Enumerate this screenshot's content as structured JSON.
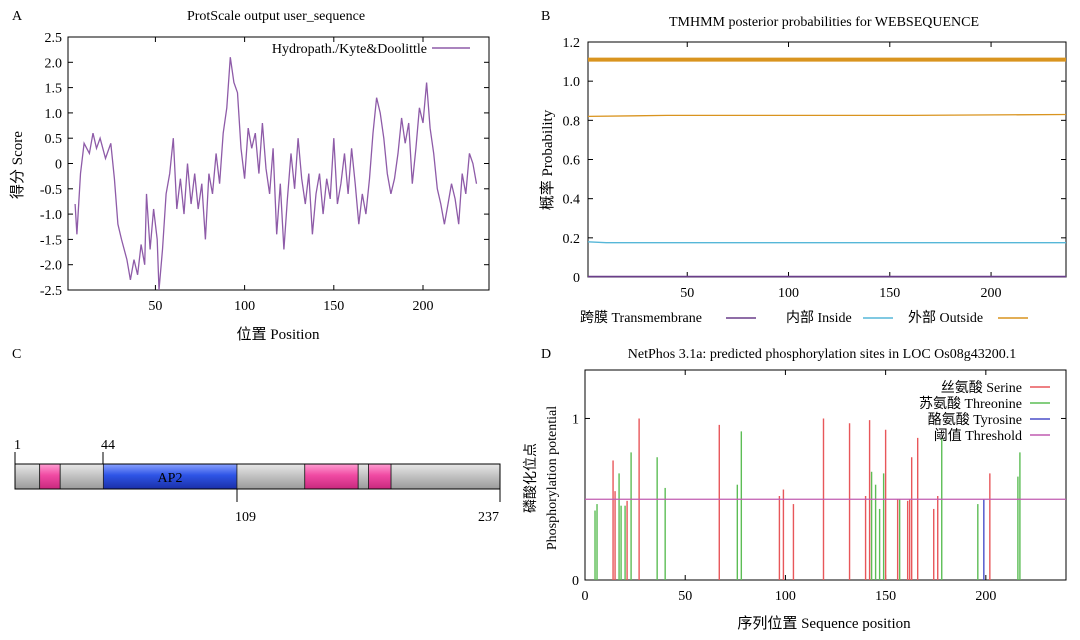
{
  "colors": {
    "hydropathy": "#8e5ba8",
    "transmembrane": "#6a3d8a",
    "inside": "#56b7d8",
    "outside": "#d9941f",
    "serine": "#e8575a",
    "threonine": "#5cbd55",
    "tyrosine": "#4a4fc9",
    "threshold": "#c05bb0",
    "ap2": "#2e54e6",
    "pink": "#f04aa3",
    "grey": "#c4c4c4"
  },
  "chart_data": [
    {
      "panel_label": "A",
      "type": "line",
      "title": "ProtScale output user_sequence",
      "xlabel": "位置 Position",
      "ylabel": "得分 Score",
      "xlim": [
        1,
        237
      ],
      "ylim": [
        -2.5,
        2.5
      ],
      "xticks": [
        50,
        100,
        150,
        200
      ],
      "yticks": [
        "2.5",
        "2.0",
        "1.5",
        "1.0",
        "0.5",
        "0",
        "-0.5",
        "-1.0",
        "-1.5",
        "-2.0",
        "-2.5"
      ],
      "legend": "Hydropath./Kyte&Doolittle",
      "anchor_points": [
        [
          5,
          -0.8
        ],
        [
          6,
          -1.4
        ],
        [
          8,
          -0.2
        ],
        [
          10,
          0.4
        ],
        [
          13,
          0.2
        ],
        [
          15,
          0.6
        ],
        [
          17,
          0.3
        ],
        [
          19,
          0.5
        ],
        [
          22,
          0.1
        ],
        [
          25,
          0.4
        ],
        [
          27,
          -0.3
        ],
        [
          29,
          -1.2
        ],
        [
          31,
          -1.5
        ],
        [
          34,
          -1.9
        ],
        [
          36,
          -2.3
        ],
        [
          38,
          -1.9
        ],
        [
          40,
          -2.2
        ],
        [
          42,
          -1.6
        ],
        [
          44,
          -2.0
        ],
        [
          45,
          -0.6
        ],
        [
          47,
          -1.7
        ],
        [
          49,
          -0.9
        ],
        [
          51,
          -1.5
        ],
        [
          52,
          -2.5
        ],
        [
          54,
          -1.7
        ],
        [
          56,
          -0.6
        ],
        [
          58,
          -0.2
        ],
        [
          60,
          0.5
        ],
        [
          62,
          -0.9
        ],
        [
          64,
          -0.3
        ],
        [
          66,
          -1.0
        ],
        [
          68,
          0.0
        ],
        [
          70,
          -0.8
        ],
        [
          72,
          -0.2
        ],
        [
          74,
          -0.9
        ],
        [
          76,
          -0.4
        ],
        [
          78,
          -1.5
        ],
        [
          80,
          -0.2
        ],
        [
          82,
          -0.6
        ],
        [
          84,
          0.2
        ],
        [
          86,
          -0.4
        ],
        [
          88,
          0.6
        ],
        [
          90,
          1.1
        ],
        [
          92,
          2.1
        ],
        [
          94,
          1.6
        ],
        [
          96,
          1.4
        ],
        [
          98,
          0.3
        ],
        [
          100,
          -0.3
        ],
        [
          102,
          0.7
        ],
        [
          104,
          0.3
        ],
        [
          106,
          0.6
        ],
        [
          108,
          -0.2
        ],
        [
          110,
          0.8
        ],
        [
          112,
          -0.1
        ],
        [
          114,
          -0.6
        ],
        [
          116,
          0.3
        ],
        [
          118,
          -1.4
        ],
        [
          120,
          -0.4
        ],
        [
          122,
          -1.7
        ],
        [
          124,
          -0.7
        ],
        [
          126,
          0.2
        ],
        [
          128,
          -0.5
        ],
        [
          130,
          0.5
        ],
        [
          132,
          -0.3
        ],
        [
          134,
          -0.8
        ],
        [
          136,
          -0.2
        ],
        [
          138,
          -1.4
        ],
        [
          140,
          -0.6
        ],
        [
          142,
          -0.2
        ],
        [
          144,
          -1.0
        ],
        [
          146,
          -0.3
        ],
        [
          148,
          -0.7
        ],
        [
          150,
          0.5
        ],
        [
          152,
          -0.8
        ],
        [
          154,
          -0.4
        ],
        [
          156,
          0.2
        ],
        [
          158,
          -0.6
        ],
        [
          160,
          0.3
        ],
        [
          162,
          -0.4
        ],
        [
          164,
          -1.2
        ],
        [
          166,
          -0.6
        ],
        [
          168,
          -1.0
        ],
        [
          170,
          -0.3
        ],
        [
          172,
          0.6
        ],
        [
          174,
          1.3
        ],
        [
          176,
          1.0
        ],
        [
          178,
          0.5
        ],
        [
          180,
          -0.2
        ],
        [
          182,
          -0.6
        ],
        [
          184,
          -0.3
        ],
        [
          186,
          0.2
        ],
        [
          188,
          0.9
        ],
        [
          190,
          0.4
        ],
        [
          192,
          0.8
        ],
        [
          194,
          -0.4
        ],
        [
          196,
          0.3
        ],
        [
          198,
          1.1
        ],
        [
          200,
          0.8
        ],
        [
          202,
          1.6
        ],
        [
          204,
          0.7
        ],
        [
          206,
          0.2
        ],
        [
          208,
          -0.5
        ],
        [
          210,
          -0.8
        ],
        [
          212,
          -1.2
        ],
        [
          214,
          -0.8
        ],
        [
          216,
          -0.4
        ],
        [
          218,
          -0.7
        ],
        [
          220,
          -1.2
        ],
        [
          222,
          -0.2
        ],
        [
          224,
          -0.6
        ],
        [
          226,
          0.2
        ],
        [
          228,
          0.0
        ],
        [
          230,
          -0.4
        ]
      ]
    },
    {
      "panel_label": "B",
      "type": "line",
      "title": "TMHMM posterior probabilities for WEBSEQUENCE",
      "ylabel": "概率 Probability",
      "xlim": [
        1,
        237
      ],
      "ylim": [
        0,
        1.2
      ],
      "xticks": [
        50,
        100,
        150,
        200
      ],
      "yticks": [
        "1.2",
        "1.0",
        "0.8",
        "0.6",
        "0.4",
        "0.2",
        "0"
      ],
      "legend": [
        "跨膜 Transmembrane",
        "内部 Inside",
        "外部 Outside"
      ],
      "series": [
        {
          "name": "外部 Outside (band)",
          "points": [
            [
              1,
              1.11
            ],
            [
              237,
              1.11
            ]
          ]
        },
        {
          "name": "外部 Outside",
          "points": [
            [
              1,
              0.82
            ],
            [
              40,
              0.825
            ],
            [
              160,
              0.825
            ],
            [
              237,
              0.83
            ]
          ]
        },
        {
          "name": "内部 Inside",
          "points": [
            [
              1,
              0.18
            ],
            [
              10,
              0.175
            ],
            [
              237,
              0.175
            ]
          ]
        },
        {
          "name": "跨膜 Transmembrane",
          "points": [
            [
              1,
              0.002
            ],
            [
              237,
              0.002
            ]
          ]
        }
      ]
    },
    {
      "panel_label": "C",
      "type": "diagram",
      "domain_label": "AP2",
      "length": 237,
      "position_labels": [
        "1",
        "44",
        "109",
        "237"
      ],
      "segments": [
        {
          "kind": "grey",
          "start": 1,
          "end": 13
        },
        {
          "kind": "pink",
          "start": 13,
          "end": 23
        },
        {
          "kind": "grey",
          "start": 23,
          "end": 44
        },
        {
          "kind": "ap2",
          "start": 44,
          "end": 109
        },
        {
          "kind": "grey",
          "start": 109,
          "end": 142
        },
        {
          "kind": "pink",
          "start": 142,
          "end": 168
        },
        {
          "kind": "grey",
          "start": 168,
          "end": 173
        },
        {
          "kind": "pink",
          "start": 173,
          "end": 184
        },
        {
          "kind": "grey",
          "start": 184,
          "end": 237
        }
      ]
    },
    {
      "panel_label": "D",
      "type": "bar",
      "title": "NetPhos 3.1a: predicted phosphorylation sites in LOC Os08g43200.1",
      "xlabel": "序列位置 Sequence position",
      "ylabel": [
        "磷酸化位点",
        "Phosphorylation potential"
      ],
      "xlim": [
        0,
        240
      ],
      "ylim": [
        0,
        1.3
      ],
      "xticks": [
        "0",
        "50",
        "100",
        "150",
        "200"
      ],
      "yticks": [
        "1",
        "0"
      ],
      "threshold": 0.5,
      "legend": [
        "丝氨酸 Serine",
        "苏氨酸 Threonine",
        "酪氨酸 Tyrosine",
        "阈值 Threshold"
      ],
      "serine": [
        [
          14,
          0.74
        ],
        [
          15,
          0.55
        ],
        [
          21,
          0.49
        ],
        [
          27,
          1.0
        ],
        [
          67,
          0.96
        ],
        [
          97,
          0.52
        ],
        [
          99,
          0.56
        ],
        [
          104,
          0.47
        ],
        [
          119,
          1.0
        ],
        [
          132,
          0.97
        ],
        [
          140,
          0.52
        ],
        [
          142,
          0.99
        ],
        [
          150,
          0.93
        ],
        [
          156,
          0.5
        ],
        [
          161,
          0.49
        ],
        [
          162,
          0.5
        ],
        [
          163,
          0.76
        ],
        [
          166,
          0.88
        ],
        [
          174,
          0.44
        ],
        [
          176,
          0.52
        ],
        [
          202,
          0.66
        ]
      ],
      "threonine": [
        [
          5,
          0.43
        ],
        [
          6,
          0.47
        ],
        [
          17,
          0.66
        ],
        [
          18,
          0.46
        ],
        [
          20,
          0.46
        ],
        [
          23,
          0.79
        ],
        [
          36,
          0.76
        ],
        [
          40,
          0.57
        ],
        [
          76,
          0.59
        ],
        [
          78,
          0.92
        ],
        [
          143,
          0.67
        ],
        [
          145,
          0.59
        ],
        [
          147,
          0.44
        ],
        [
          149,
          0.66
        ],
        [
          157,
          0.5
        ],
        [
          178,
          0.88
        ],
        [
          196,
          0.47
        ],
        [
          216,
          0.64
        ],
        [
          217,
          0.79
        ]
      ],
      "tyrosine": [
        [
          199,
          0.5
        ]
      ]
    }
  ]
}
